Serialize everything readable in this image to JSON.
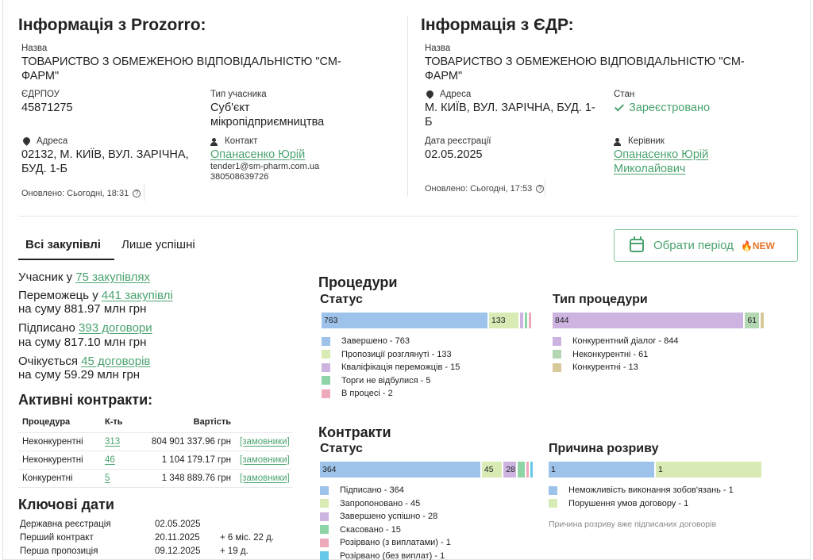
{
  "prozorro": {
    "title": "Інформація з Prozorro:",
    "name_label": "Назва",
    "name_line1": "ТОВАРИСТВО З ОБМЕЖЕНОЮ ВІДПОВІДАЛЬНІСТЮ \"СМ-",
    "name_line2": "ФАРМ\"",
    "edrpou_label": "ЄДРПОУ",
    "edrpou": "45871275",
    "type_label": "Тип учасника",
    "type_line1": "Суб'єкт",
    "type_line2": "мікропідприємництва",
    "address_label": "Адреса",
    "address_line1": "02132, М. КИЇВ, ВУЛ. ЗАРІЧНА,",
    "address_line2": "БУД. 1-Б",
    "contact_label": "Контакт",
    "contact_name": "Опанасенко Юрій",
    "contact_email": "tender1@sm-pharm.com.ua",
    "contact_phone": "380508639726",
    "updated": "Оновлено: Сьогодні, 18:31"
  },
  "edr": {
    "title": "Інформація з ЄДР:",
    "name_label": "Назва",
    "name_line1": "ТОВАРИСТВО З ОБМЕЖЕНОЮ ВІДПОВІДАЛЬНІСТЮ \"СМ-",
    "name_line2": "ФАРМ\"",
    "address_label": "Адреса",
    "address_line1": "М. КИЇВ, ВУЛ. ЗАРІЧНА, БУД. 1-",
    "address_line2": "Б",
    "state_label": "Стан",
    "state": "Зареєстровано",
    "reg_date_label": "Дата реєстрації",
    "reg_date": "02.05.2025",
    "head_label": "Керівник",
    "head_line1": "Опанасенко Юрій",
    "head_line2": "Миколайович",
    "updated": "Оновлено: Сьогодні, 17:53"
  },
  "tabs": {
    "all": "Всі закупівлі",
    "success": "Лише успішні"
  },
  "period_button": {
    "label": "Обрати період",
    "badge": "🔥NEW"
  },
  "stats": {
    "participant_prefix": "Учасник у",
    "participant_link": "75 закупівлях",
    "winner_prefix": "Переможець у",
    "winner_link": "441 закупівлі",
    "winner_sum": "на суму 881.97 млн грн",
    "signed_prefix": "Підписано",
    "signed_link": "393 договори",
    "signed_sum": "на суму 817.10 млн грн",
    "expected_prefix": "Очікується",
    "expected_link": "45 договорів",
    "expected_sum": "на суму 59.29 млн грн"
  },
  "active_contracts": {
    "title": "Активні контракти:",
    "headers": {
      "procedure": "Процедура",
      "count": "К-ть",
      "value": "Вартість"
    },
    "rows": [
      {
        "procedure": "Неконкурентні",
        "count": "313",
        "value": "804 901 337.96 грн",
        "link": "[замовники]"
      },
      {
        "procedure": "Неконкурентні",
        "count": "46",
        "value": "1 104 179.17 грн",
        "link": "[замовники]"
      },
      {
        "procedure": "Конкурентні",
        "count": "5",
        "value": "1 348 889.76 грн",
        "link": "[замовники]"
      }
    ]
  },
  "key_dates": {
    "title": "Ключові дати",
    "rows": [
      {
        "label": "Державна реєстрація",
        "date": "02.05.2025",
        "diff": ""
      },
      {
        "label": "Перший контракт",
        "date": "20.11.2025",
        "diff": "+ 6 міс. 22 д."
      },
      {
        "label": "Перша пропозиція",
        "date": "09.12.2025",
        "diff": "+ 19 д."
      }
    ]
  },
  "procedures": {
    "title": "Процедури",
    "status_title": "Статус",
    "type_title": "Тип процедури"
  },
  "contracts": {
    "title": "Контракти",
    "status_title": "Статус",
    "reason_title": "Причина розриву",
    "reason_note": "Причина розриву вже підписаних договорів"
  },
  "colors": {
    "accent": "#4aa36e",
    "blue": "#9dc3ea",
    "lime": "#d9ebb5",
    "purple": "#cdb3e0",
    "green": "#8fd4a6",
    "pink": "#eeaabb",
    "sage": "#b3d6b3",
    "tan": "#d8c99b",
    "cyan": "#67c8ea"
  },
  "chart_data": [
    {
      "type": "bar",
      "title": "Статус",
      "categories": [
        "Завершено",
        "Пропозиції розглянуті",
        "Кваліфікація переможців",
        "Торги не відбулися",
        "В процесі"
      ],
      "values": [
        763,
        133,
        15,
        5,
        2
      ],
      "labels": [
        "Завершено - 763",
        "Пропозиції розглянуті - 133",
        "Кваліфікація переможців - 15",
        "Торги не відбулися - 5",
        "В процесі - 2"
      ],
      "colors": [
        "#9dc3ea",
        "#d9ebb5",
        "#cdb3e0",
        "#8fd4a6",
        "#eeaabb"
      ],
      "stacked": true
    },
    {
      "type": "bar",
      "title": "Тип процедури",
      "categories": [
        "Конкурентний діалог",
        "Неконкурентні",
        "Конкурентні"
      ],
      "values": [
        844,
        61,
        13
      ],
      "labels": [
        "Конкурентний діалог - 844",
        "Неконкурентні - 61",
        "Конкурентні - 13"
      ],
      "colors": [
        "#cdb3e0",
        "#b3d6b3",
        "#d8c99b"
      ],
      "stacked": true
    },
    {
      "type": "bar",
      "title": "Статус",
      "categories": [
        "Підписано",
        "Запропоновано",
        "Завершено успішно",
        "Скасовано",
        "Розірвано (з виплатами)",
        "Розірвано (без виплат)"
      ],
      "values": [
        364,
        45,
        28,
        15,
        1,
        1
      ],
      "labels": [
        "Підписано - 364",
        "Запропоновано - 45",
        "Завершено успішно - 28",
        "Скасовано - 15",
        "Розірвано (з виплатами) - 1",
        "Розірвано (без виплат) - 1"
      ],
      "colors": [
        "#9dc3ea",
        "#d9ebb5",
        "#cdb3e0",
        "#8fd4a6",
        "#eeaabb",
        "#67c8ea"
      ],
      "stacked": true
    },
    {
      "type": "bar",
      "title": "Причина розриву",
      "categories": [
        "Неможливість виконання зобов'язань",
        "Порушення умов договору"
      ],
      "values": [
        1,
        1
      ],
      "labels": [
        "Неможливість виконання зобов'язань - 1",
        "Порушення умов договору - 1"
      ],
      "colors": [
        "#9dc3ea",
        "#d9ebb5"
      ],
      "stacked": true
    }
  ]
}
